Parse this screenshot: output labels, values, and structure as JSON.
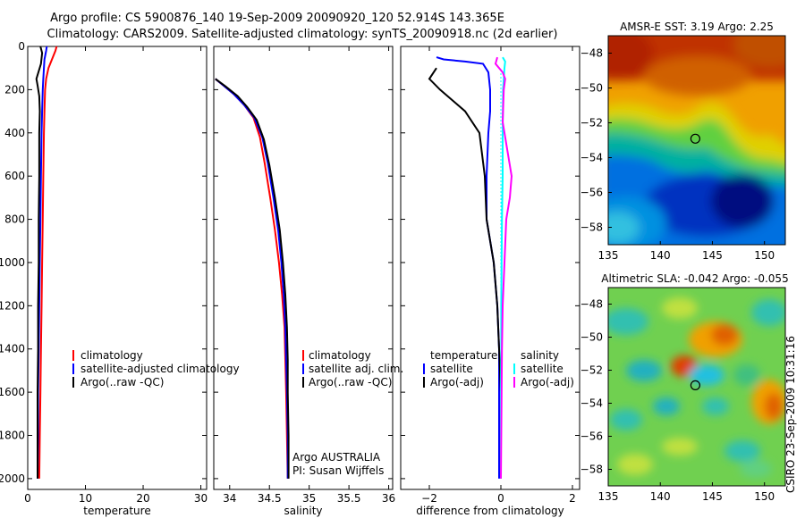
{
  "header": {
    "line1": "Argo profile: CS 5900876_140 19-Sep-2009 20090920_120 52.914S 143.365E",
    "line2": "Climatology: CARS2009. Satellite-adjusted climatology: synTS_20090918.nc (2d earlier)"
  },
  "side_label": "CSIRO 23-Sep-2009 10:31:16",
  "colors": {
    "climatology": "#ff0000",
    "satellite": "#0000ff",
    "argo": "#000000",
    "sal_satellite": "#00ffff",
    "sal_argo": "#ff00ff",
    "zero_line": "#00ffff"
  },
  "chart_data": [
    {
      "type": "line",
      "id": "temperature",
      "xlabel": "temperature",
      "xlim": [
        0,
        31
      ],
      "xticks": [
        0,
        10,
        20,
        30
      ],
      "ylim": [
        0,
        2050
      ],
      "yticks": [
        0,
        200,
        400,
        600,
        800,
        1000,
        1200,
        1400,
        1600,
        1800,
        2000
      ],
      "y_reversed": true,
      "legend": [
        "climatology",
        "satellite-adjusted climatology",
        "Argo(..raw -QC)"
      ],
      "series": [
        {
          "name": "climatology",
          "points": [
            [
              5,
              0
            ],
            [
              4.8,
              20
            ],
            [
              4.2,
              60
            ],
            [
              3.6,
              100
            ],
            [
              3.2,
              150
            ],
            [
              3.0,
              200
            ],
            [
              2.9,
              300
            ],
            [
              2.8,
              400
            ],
            [
              2.7,
              600
            ],
            [
              2.6,
              800
            ],
            [
              2.5,
              1000
            ],
            [
              2.4,
              1200
            ],
            [
              2.3,
              1400
            ],
            [
              2.2,
              1600
            ],
            [
              2.1,
              1800
            ],
            [
              2.0,
              2000
            ]
          ]
        },
        {
          "name": "satellite-adjusted climatology",
          "points": [
            [
              3.3,
              0
            ],
            [
              3.2,
              20
            ],
            [
              2.9,
              60
            ],
            [
              2.8,
              100
            ],
            [
              2.7,
              150
            ],
            [
              2.6,
              200
            ],
            [
              2.5,
              300
            ],
            [
              2.4,
              400
            ],
            [
              2.3,
              600
            ],
            [
              2.2,
              800
            ],
            [
              2.1,
              1000
            ],
            [
              2.0,
              1200
            ],
            [
              1.9,
              1400
            ],
            [
              1.8,
              1600
            ],
            [
              1.8,
              1800
            ],
            [
              1.7,
              2000
            ]
          ]
        },
        {
          "name": "Argo(..raw -QC)",
          "points": [
            [
              2.2,
              0
            ],
            [
              2.5,
              30
            ],
            [
              2.3,
              80
            ],
            [
              1.5,
              150
            ],
            [
              1.7,
              180
            ],
            [
              2.0,
              230
            ],
            [
              2.1,
              300
            ],
            [
              2.0,
              400
            ],
            [
              2.0,
              600
            ],
            [
              1.9,
              800
            ],
            [
              1.9,
              1000
            ],
            [
              1.8,
              1200
            ],
            [
              1.8,
              1400
            ],
            [
              1.7,
              1600
            ],
            [
              1.7,
              1800
            ],
            [
              1.7,
              2000
            ]
          ]
        }
      ]
    },
    {
      "type": "line",
      "id": "salinity",
      "xlabel": "salinity",
      "xlim": [
        33.8,
        36.05
      ],
      "xticks": [
        34,
        34.5,
        35,
        35.5,
        36
      ],
      "ylim": [
        0,
        2050
      ],
      "y_reversed": true,
      "legend": [
        "climatology",
        "satellite adj. clim.",
        "Argo(..raw -QC)"
      ],
      "annotation": [
        "Argo AUSTRALIA",
        "PI: Susan Wijffels"
      ],
      "series": [
        {
          "name": "climatology",
          "points": [
            [
              33.82,
              150
            ],
            [
              33.92,
              180
            ],
            [
              34.05,
              220
            ],
            [
              34.18,
              270
            ],
            [
              34.3,
              330
            ],
            [
              34.38,
              420
            ],
            [
              34.44,
              540
            ],
            [
              34.51,
              700
            ],
            [
              34.57,
              850
            ],
            [
              34.62,
              1000
            ],
            [
              34.66,
              1150
            ],
            [
              34.69,
              1300
            ],
            [
              34.7,
              1450
            ],
            [
              34.71,
              1600
            ],
            [
              34.72,
              1800
            ],
            [
              34.73,
              2000
            ]
          ]
        },
        {
          "name": "satellite adj. clim.",
          "points": [
            [
              33.82,
              150
            ],
            [
              33.92,
              180
            ],
            [
              34.05,
              220
            ],
            [
              34.18,
              270
            ],
            [
              34.31,
              330
            ],
            [
              34.41,
              420
            ],
            [
              34.48,
              540
            ],
            [
              34.55,
              700
            ],
            [
              34.61,
              850
            ],
            [
              34.65,
              1000
            ],
            [
              34.68,
              1150
            ],
            [
              34.7,
              1300
            ],
            [
              34.71,
              1450
            ],
            [
              34.72,
              1600
            ],
            [
              34.73,
              1800
            ],
            [
              34.73,
              2000
            ]
          ]
        },
        {
          "name": "Argo(..raw -QC)",
          "points": [
            [
              33.82,
              150
            ],
            [
              33.95,
              185
            ],
            [
              34.1,
              230
            ],
            [
              34.22,
              280
            ],
            [
              34.34,
              340
            ],
            [
              34.43,
              430
            ],
            [
              34.5,
              550
            ],
            [
              34.57,
              700
            ],
            [
              34.63,
              850
            ],
            [
              34.67,
              1000
            ],
            [
              34.7,
              1150
            ],
            [
              34.72,
              1300
            ],
            [
              34.73,
              1450
            ],
            [
              34.73,
              1600
            ],
            [
              34.74,
              1800
            ],
            [
              34.74,
              2000
            ]
          ]
        }
      ]
    },
    {
      "type": "line",
      "id": "difference",
      "xlabel": "difference from climatology",
      "xlim": [
        -2.8,
        2.2
      ],
      "xticks": [
        -2,
        0,
        2
      ],
      "ylim": [
        0,
        2050
      ],
      "y_reversed": true,
      "legend_left_title": "temperature",
      "legend_left": [
        "satellite",
        "Argo(-adj)"
      ],
      "legend_right_title": "salinity",
      "legend_right": [
        "satellite",
        "Argo(-adj)"
      ],
      "series": [
        {
          "name": "temperature satellite",
          "points": [
            [
              -1.8,
              50
            ],
            [
              -1.6,
              60
            ],
            [
              -1.0,
              70
            ],
            [
              -0.5,
              80
            ],
            [
              -0.35,
              120
            ],
            [
              -0.3,
              200
            ],
            [
              -0.3,
              300
            ],
            [
              -0.35,
              400
            ],
            [
              -0.4,
              600
            ],
            [
              -0.4,
              800
            ],
            [
              -0.2,
              1000
            ],
            [
              -0.1,
              1200
            ],
            [
              -0.05,
              1400
            ],
            [
              -0.05,
              1600
            ],
            [
              -0.05,
              1800
            ],
            [
              -0.05,
              2000
            ]
          ]
        },
        {
          "name": "temperature Argo(-adj)",
          "points": [
            [
              -1.8,
              100
            ],
            [
              -2.0,
              150
            ],
            [
              -1.7,
              200
            ],
            [
              -1.0,
              300
            ],
            [
              -0.6,
              400
            ],
            [
              -0.45,
              600
            ],
            [
              -0.4,
              800
            ],
            [
              -0.2,
              1000
            ],
            [
              -0.1,
              1200
            ],
            [
              -0.05,
              1400
            ],
            [
              0,
              1600
            ],
            [
              0,
              1800
            ],
            [
              0,
              2000
            ]
          ]
        },
        {
          "name": "salinity satellite",
          "points": [
            [
              0.05,
              50
            ],
            [
              0.12,
              70
            ],
            [
              0.1,
              100
            ],
            [
              0.06,
              200
            ],
            [
              0.05,
              400
            ],
            [
              0.05,
              600
            ],
            [
              0.03,
              800
            ],
            [
              0.02,
              1000
            ],
            [
              0.01,
              1200
            ],
            [
              0.01,
              1400
            ],
            [
              0.0,
              1600
            ],
            [
              0.0,
              1800
            ],
            [
              0.0,
              2000
            ]
          ]
        },
        {
          "name": "salinity Argo(-adj)",
          "points": [
            [
              -0.1,
              50
            ],
            [
              -0.15,
              80
            ],
            [
              0.05,
              120
            ],
            [
              0.12,
              150
            ],
            [
              0.08,
              200
            ],
            [
              0.05,
              350
            ],
            [
              0.2,
              500
            ],
            [
              0.3,
              600
            ],
            [
              0.25,
              700
            ],
            [
              0.15,
              800
            ],
            [
              0.1,
              1000
            ],
            [
              0.05,
              1200
            ],
            [
              0.03,
              1400
            ],
            [
              0.02,
              1600
            ],
            [
              0.01,
              1800
            ],
            [
              0.0,
              2000
            ]
          ]
        }
      ]
    },
    {
      "type": "heatmap",
      "id": "sst_map",
      "title": "AMSR-E SST: 3.19  Argo: 2.25",
      "xlim": [
        135,
        152
      ],
      "ylim": [
        -59,
        -47
      ],
      "xticks": [
        135,
        140,
        145,
        150
      ],
      "yticks": [
        -48,
        -50,
        -52,
        -54,
        -56,
        -58
      ],
      "marker": [
        143.365,
        -52.914
      ]
    },
    {
      "type": "heatmap",
      "id": "sla_map",
      "title": "Altimetric SLA: -0.042  Argo: -0.055",
      "xlim": [
        135,
        152
      ],
      "ylim": [
        -59,
        -47
      ],
      "xticks": [
        135,
        140,
        145,
        150
      ],
      "yticks": [
        -48,
        -50,
        -52,
        -54,
        -56,
        -58
      ],
      "marker": [
        143.365,
        -52.914
      ]
    }
  ]
}
